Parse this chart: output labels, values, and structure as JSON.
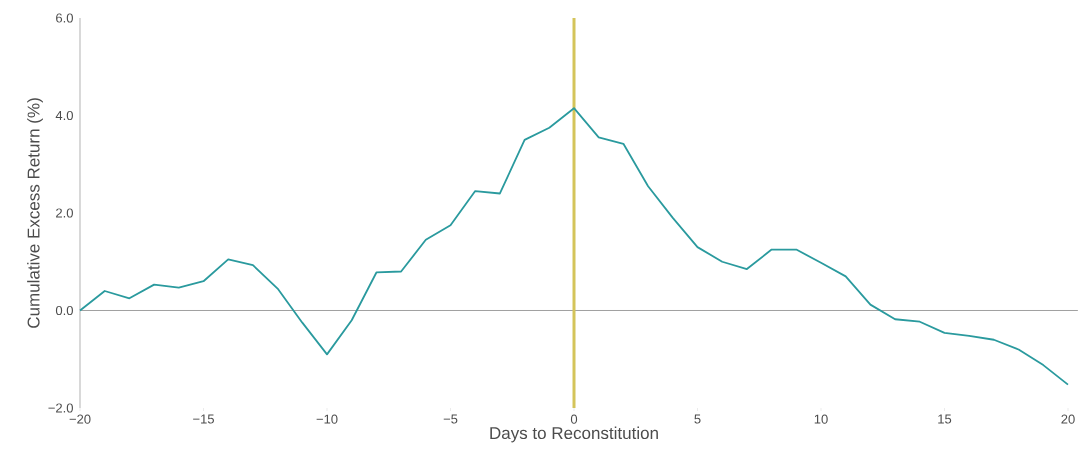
{
  "chart_data": {
    "type": "line",
    "xlabel": "Days to Reconstitution",
    "ylabel": "Cumulative Excess Return (%)",
    "x": [
      -20,
      -19,
      -18,
      -17,
      -16,
      -15,
      -14,
      -13,
      -12,
      -11,
      -10,
      -9,
      -8,
      -7,
      -6,
      -5,
      -4,
      -3,
      -2,
      -1,
      0,
      1,
      2,
      3,
      4,
      5,
      6,
      7,
      8,
      9,
      10,
      11,
      12,
      13,
      14,
      15,
      16,
      17,
      18,
      19,
      20
    ],
    "series": [
      {
        "color": "#2a9a9e",
        "values": [
          0,
          0.4,
          0.25,
          0.53,
          0.47,
          0.6,
          1.05,
          0.93,
          0.45,
          -0.25,
          -0.9,
          -0.2,
          0.78,
          0.8,
          1.45,
          1.75,
          2.45,
          2.4,
          3.5,
          3.75,
          4.15,
          3.55,
          3.42,
          2.55,
          1.9,
          1.3,
          1.0,
          0.85,
          1.25,
          1.25,
          0.98,
          0.7,
          0.12,
          -0.18,
          -0.23,
          -0.46,
          -0.52,
          -0.6,
          -0.8,
          -1.12,
          -1.52
        ]
      }
    ],
    "xlim": [
      -20,
      20
    ],
    "ylim": [
      -2,
      6
    ],
    "xticks": [
      {
        "value": -20,
        "label": "−20"
      },
      {
        "value": -15,
        "label": "−15"
      },
      {
        "value": -10,
        "label": "−10"
      },
      {
        "value": -5,
        "label": "−5"
      },
      0,
      5,
      10,
      15,
      20
    ],
    "yticks": [
      {
        "value": -2,
        "label": "−2.0"
      },
      {
        "value": 0,
        "label": "0.0"
      },
      {
        "value": 2,
        "label": "2.0"
      },
      {
        "value": 4,
        "label": "4.0"
      },
      {
        "value": 6,
        "label": "6.0"
      }
    ],
    "ref_lines": [
      {
        "axis": "y",
        "value": 0,
        "color": "#a0a0a0"
      },
      {
        "axis": "x",
        "value": 0,
        "color": "#d4c45a"
      }
    ],
    "grid": false,
    "legend": false,
    "marker": "none",
    "line_style": "solid"
  }
}
